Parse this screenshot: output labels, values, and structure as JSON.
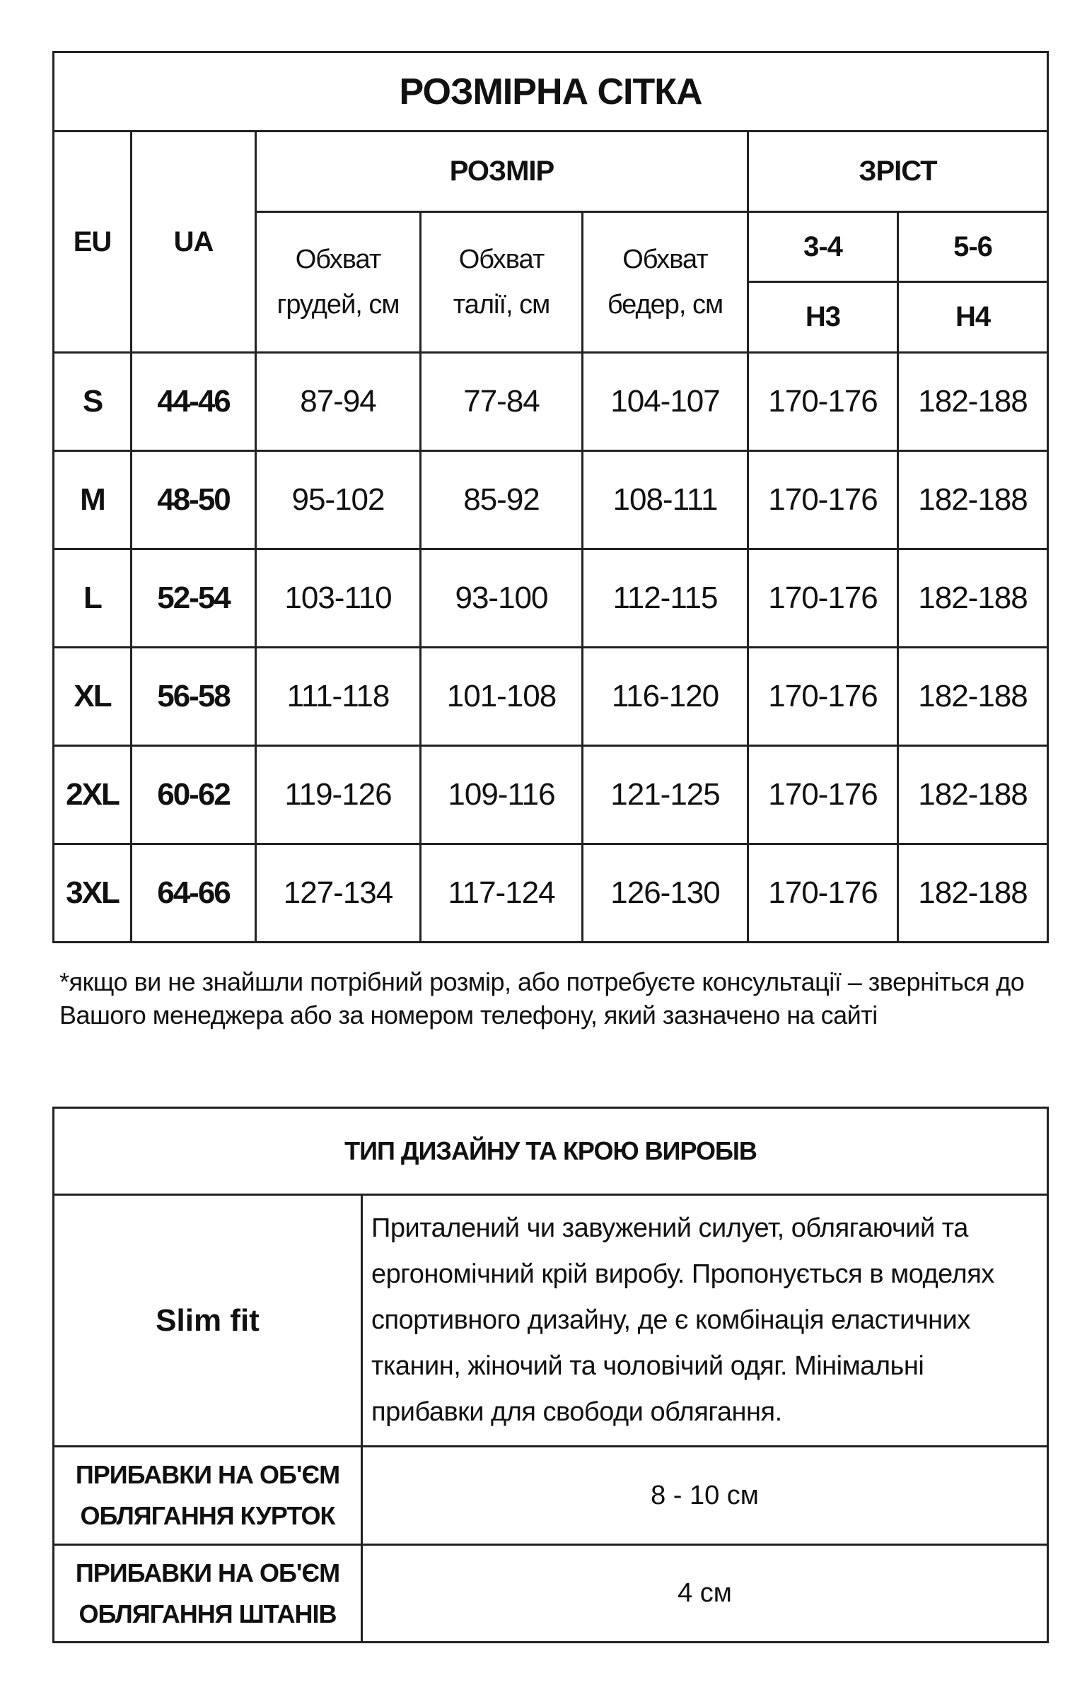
{
  "size_chart": {
    "title": "РОЗМІРНА СІТКА",
    "col_eu": "EU",
    "col_ua": "UA",
    "group_size": "РОЗМІР",
    "group_height": "ЗРІСТ",
    "measures": [
      {
        "line1": "Обхват",
        "line2": "грудей, см"
      },
      {
        "line1": "Обхват",
        "line2": "талії, см"
      },
      {
        "line1": "Обхват",
        "line2": "бедер, см"
      }
    ],
    "height_groups": [
      {
        "range": "3-4",
        "code": "Н3"
      },
      {
        "range": "5-6",
        "code": "Н4"
      }
    ],
    "rows": [
      {
        "eu": "S",
        "ua": "44-46",
        "chest": "87-94",
        "waist": "77-84",
        "hips": "104-107",
        "h3": "170-176",
        "h4": "182-188"
      },
      {
        "eu": "M",
        "ua": "48-50",
        "chest": "95-102",
        "waist": "85-92",
        "hips": "108-111",
        "h3": "170-176",
        "h4": "182-188"
      },
      {
        "eu": "L",
        "ua": "52-54",
        "chest": "103-110",
        "waist": "93-100",
        "hips": "112-115",
        "h3": "170-176",
        "h4": "182-188"
      },
      {
        "eu": "XL",
        "ua": "56-58",
        "chest": "111-118",
        "waist": "101-108",
        "hips": "116-120",
        "h3": "170-176",
        "h4": "182-188"
      },
      {
        "eu": "2XL",
        "ua": "60-62",
        "chest": "119-126",
        "waist": "109-116",
        "hips": "121-125",
        "h3": "170-176",
        "h4": "182-188"
      },
      {
        "eu": "3XL",
        "ua": "64-66",
        "chest": "127-134",
        "waist": "117-124",
        "hips": "126-130",
        "h3": "170-176",
        "h4": "182-188"
      }
    ]
  },
  "note": "*якщо ви не знайшли потрібний розмір, або потребуєте консультації – зверніться до Вашого менеджера або за номером телефону, який зазначено на сайті",
  "fit_table": {
    "title": "ТИП ДИЗАЙНУ ТА КРОЮ ВИРОБІВ",
    "fit_name": "Slim fit",
    "fit_description": "Приталений чи завужений силует, облягаючий та ергономічний крій виробу. Пропонується в моделях спортивного дизайну, де є комбінація еластичних тканин, жіночий та чоловічий одяг. Мінімальні прибавки для свободи облягання.",
    "allowances": [
      {
        "label_line1": "ПРИБАВКИ НА ОБ'ЄМ",
        "label_line2": "ОБЛЯГАННЯ КУРТОК",
        "value": "8 - 10 см"
      },
      {
        "label_line1": "ПРИБАВКИ НА ОБ'ЄМ",
        "label_line2": "ОБЛЯГАННЯ ШТАНІВ",
        "value": "4 см"
      }
    ]
  }
}
